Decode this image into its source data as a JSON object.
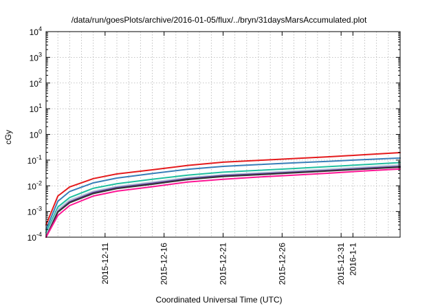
{
  "chart_data": {
    "type": "line",
    "title": "/data/run/goesPlots/archive/2016-01-05/flux/../bryn/31daysMarsAccumulated.plot",
    "xlabel": "Coordinated Universal Time (UTC)",
    "ylabel": "cGy",
    "y_scale": "log",
    "ylim_exponents": [
      -4,
      4
    ],
    "ytick_base": "10",
    "ytick_exponents": [
      "-4",
      "-3",
      "-2",
      "-1",
      "0",
      "1",
      "2",
      "3",
      "4"
    ],
    "xlim": [
      "2015-12-06",
      "2016-01-05"
    ],
    "xtick_dates": [
      "2015-12-11",
      "2015-12-16",
      "2015-12-21",
      "2015-12-26",
      "2015-12-31",
      "2016-01-01"
    ],
    "xtick_labels": [
      "2015-12-11",
      "2015-12-16",
      "2015-12-21",
      "2015-12-26",
      "2015-12-31",
      "2016-1-1"
    ],
    "grid": true,
    "x": [
      "2015-12-06",
      "2015-12-07",
      "2015-12-08",
      "2015-12-10",
      "2015-12-12",
      "2015-12-15",
      "2015-12-18",
      "2015-12-21",
      "2015-12-24",
      "2015-12-27",
      "2015-12-30",
      "2016-01-02",
      "2016-01-05"
    ],
    "series": [
      {
        "color": "#e41a1c",
        "values": [
          0.0003,
          0.004,
          0.009,
          0.019,
          0.029,
          0.042,
          0.062,
          0.083,
          0.098,
          0.115,
          0.135,
          0.162,
          0.195
        ]
      },
      {
        "color": "#377eb8",
        "values": [
          0.0002,
          0.0025,
          0.006,
          0.013,
          0.02,
          0.03,
          0.044,
          0.057,
          0.067,
          0.078,
          0.09,
          0.105,
          0.12
        ]
      },
      {
        "color": "#1fbf9f",
        "values": [
          0.00015,
          0.0015,
          0.0035,
          0.008,
          0.012,
          0.018,
          0.026,
          0.034,
          0.04,
          0.047,
          0.056,
          0.067,
          0.08
        ]
      },
      {
        "color": "#b8c8d8",
        "values": [
          0.00012,
          0.0012,
          0.0028,
          0.0062,
          0.0095,
          0.014,
          0.021,
          0.027,
          0.032,
          0.038,
          0.045,
          0.054,
          0.065
        ]
      },
      {
        "color": "#5e3c99",
        "values": [
          0.0001,
          0.001,
          0.0024,
          0.0055,
          0.0085,
          0.0125,
          0.019,
          0.025,
          0.029,
          0.034,
          0.04,
          0.048,
          0.057
        ]
      },
      {
        "color": "#333333",
        "values": [
          0.0001,
          0.00095,
          0.0022,
          0.005,
          0.0078,
          0.0115,
          0.0175,
          0.023,
          0.027,
          0.032,
          0.038,
          0.045,
          0.053
        ]
      },
      {
        "color": "#ff1493",
        "values": [
          0.0001,
          0.0007,
          0.0017,
          0.004,
          0.0062,
          0.0092,
          0.014,
          0.018,
          0.022,
          0.026,
          0.031,
          0.038,
          0.045
        ]
      }
    ]
  }
}
